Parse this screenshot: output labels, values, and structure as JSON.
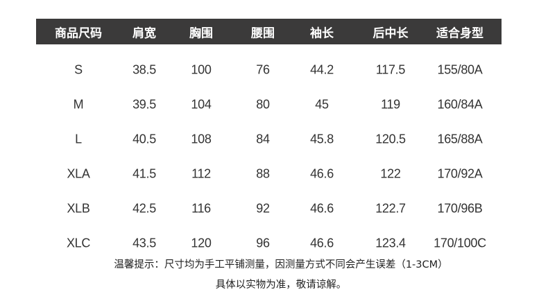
{
  "table": {
    "headers": [
      "商品尺码",
      "肩宽",
      "胸围",
      "腰围",
      "袖长",
      "后中长",
      "适合身型"
    ],
    "rows": [
      [
        "S",
        "38.5",
        "100",
        "76",
        "44.2",
        "117.5",
        "155/80A"
      ],
      [
        "M",
        "39.5",
        "104",
        "80",
        "45",
        "119",
        "160/84A"
      ],
      [
        "L",
        "40.5",
        "108",
        "84",
        "45.8",
        "120.5",
        "165/88A"
      ],
      [
        "XLA",
        "41.5",
        "112",
        "88",
        "46.6",
        "122",
        "170/92A"
      ],
      [
        "XLB",
        "42.5",
        "116",
        "92",
        "46.6",
        "122.7",
        "170/96B"
      ],
      [
        "XLC",
        "43.5",
        "120",
        "96",
        "46.6",
        "123.4",
        "170/100C"
      ]
    ]
  },
  "note": {
    "line1": "温馨提示：尺寸均为手工平铺测量，因测量方式不同会产生误差（1-3CM）",
    "line2": "具体以实物为准，敬请谅解。"
  },
  "colors": {
    "header_bg": "#3b3a3a",
    "header_text": "#ffffff",
    "text": "#333333"
  }
}
